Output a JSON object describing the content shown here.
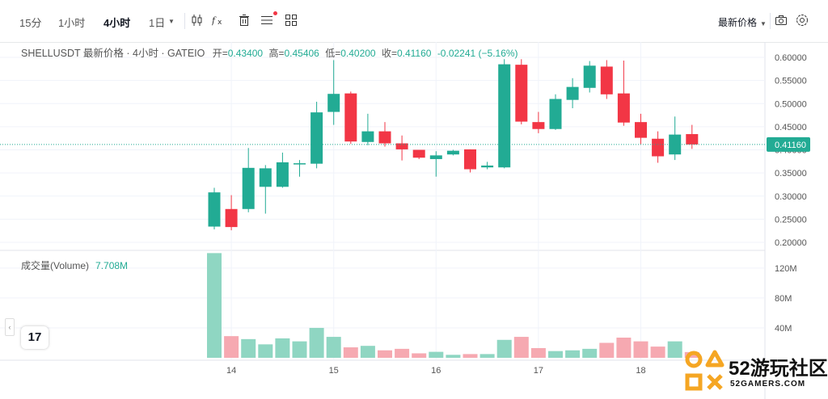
{
  "toolbar": {
    "timeframes": [
      {
        "label": "15分",
        "active": false
      },
      {
        "label": "1小时",
        "active": false
      },
      {
        "label": "4小时",
        "active": true
      },
      {
        "label": "1日",
        "active": false
      }
    ],
    "dropdown_caret": "▼",
    "icons": [
      "candlestick-icon",
      "indicators-icon",
      "delete-icon",
      "menu-icon",
      "layout-grid-icon"
    ],
    "price_mode": "最新价格",
    "right_icons": [
      "camera-icon",
      "settings-icon"
    ]
  },
  "legend": {
    "symbol": "SHELLUSDT 最新价格 · 4小时 · GATEIO",
    "open_label": "开=",
    "open": "0.43400",
    "high_label": "高=",
    "high": "0.45406",
    "low_label": "低=",
    "low": "0.40200",
    "close_label": "收=",
    "close": "0.41160",
    "change": "-0.02241 (−5.16%)"
  },
  "volume_legend": {
    "label": "成交量(Volume)",
    "value": "7.708M"
  },
  "logo_text": "17",
  "collapse_glyph": "‹",
  "watermark": {
    "brand": "52游玩社区",
    "sub": "52GAMERS.COM"
  },
  "colors": {
    "up": "#22ab94",
    "down": "#f23645",
    "vol_up": "#8fd6c2",
    "vol_down": "#f6a9b1",
    "grid": "#f0f3fa"
  },
  "chart_data": {
    "type": "candlestick",
    "price_axis": {
      "min": 0.2,
      "max": 0.6,
      "ticks": [
        "0.60000",
        "0.55000",
        "0.50000",
        "0.45000",
        "0.40000",
        "0.35000",
        "0.30000",
        "0.25000",
        "0.20000"
      ]
    },
    "last_price": 0.4116,
    "last_price_label": "0.41160",
    "volume_axis": {
      "ticks": [
        {
          "value": 120,
          "label": "120M"
        },
        {
          "value": 80,
          "label": "80M"
        },
        {
          "value": 40,
          "label": "40M"
        }
      ]
    },
    "x_ticks": [
      "14",
      "15",
      "16",
      "17",
      "18"
    ],
    "candles": [
      {
        "o": 0.234,
        "h": 0.318,
        "l": 0.228,
        "c": 0.308,
        "v": 140
      },
      {
        "o": 0.272,
        "h": 0.302,
        "l": 0.226,
        "c": 0.233,
        "v": 29
      },
      {
        "o": 0.272,
        "h": 0.404,
        "l": 0.265,
        "c": 0.361,
        "v": 25
      },
      {
        "o": 0.32,
        "h": 0.367,
        "l": 0.262,
        "c": 0.36,
        "v": 18
      },
      {
        "o": 0.32,
        "h": 0.394,
        "l": 0.318,
        "c": 0.373,
        "v": 26
      },
      {
        "o": 0.371,
        "h": 0.378,
        "l": 0.342,
        "c": 0.371,
        "v": 22
      },
      {
        "o": 0.37,
        "h": 0.504,
        "l": 0.36,
        "c": 0.481,
        "v": 40
      },
      {
        "o": 0.482,
        "h": 0.594,
        "l": 0.454,
        "c": 0.521,
        "v": 28
      },
      {
        "o": 0.522,
        "h": 0.526,
        "l": 0.413,
        "c": 0.418,
        "v": 14
      },
      {
        "o": 0.417,
        "h": 0.478,
        "l": 0.41,
        "c": 0.44,
        "v": 16
      },
      {
        "o": 0.44,
        "h": 0.46,
        "l": 0.407,
        "c": 0.414,
        "v": 10
      },
      {
        "o": 0.414,
        "h": 0.431,
        "l": 0.377,
        "c": 0.401,
        "v": 12
      },
      {
        "o": 0.4,
        "h": 0.4,
        "l": 0.38,
        "c": 0.383,
        "v": 6
      },
      {
        "o": 0.38,
        "h": 0.397,
        "l": 0.342,
        "c": 0.388,
        "v": 8
      },
      {
        "o": 0.39,
        "h": 0.4,
        "l": 0.388,
        "c": 0.398,
        "v": 4
      },
      {
        "o": 0.401,
        "h": 0.401,
        "l": 0.351,
        "c": 0.358,
        "v": 5
      },
      {
        "o": 0.362,
        "h": 0.374,
        "l": 0.358,
        "c": 0.366,
        "v": 5
      },
      {
        "o": 0.362,
        "h": 0.596,
        "l": 0.36,
        "c": 0.585,
        "v": 24
      },
      {
        "o": 0.584,
        "h": 0.596,
        "l": 0.455,
        "c": 0.461,
        "v": 28
      },
      {
        "o": 0.46,
        "h": 0.482,
        "l": 0.436,
        "c": 0.445,
        "v": 13
      },
      {
        "o": 0.445,
        "h": 0.52,
        "l": 0.443,
        "c": 0.51,
        "v": 9
      },
      {
        "o": 0.508,
        "h": 0.555,
        "l": 0.49,
        "c": 0.536,
        "v": 10
      },
      {
        "o": 0.534,
        "h": 0.592,
        "l": 0.524,
        "c": 0.582,
        "v": 12
      },
      {
        "o": 0.58,
        "h": 0.594,
        "l": 0.51,
        "c": 0.52,
        "v": 20
      },
      {
        "o": 0.522,
        "h": 0.593,
        "l": 0.452,
        "c": 0.459,
        "v": 27
      },
      {
        "o": 0.46,
        "h": 0.478,
        "l": 0.412,
        "c": 0.426,
        "v": 22
      },
      {
        "o": 0.424,
        "h": 0.44,
        "l": 0.372,
        "c": 0.386,
        "v": 15
      },
      {
        "o": 0.39,
        "h": 0.472,
        "l": 0.378,
        "c": 0.433,
        "v": 22
      },
      {
        "o": 0.434,
        "h": 0.454,
        "l": 0.402,
        "c": 0.4116,
        "v": 7.708
      }
    ]
  }
}
